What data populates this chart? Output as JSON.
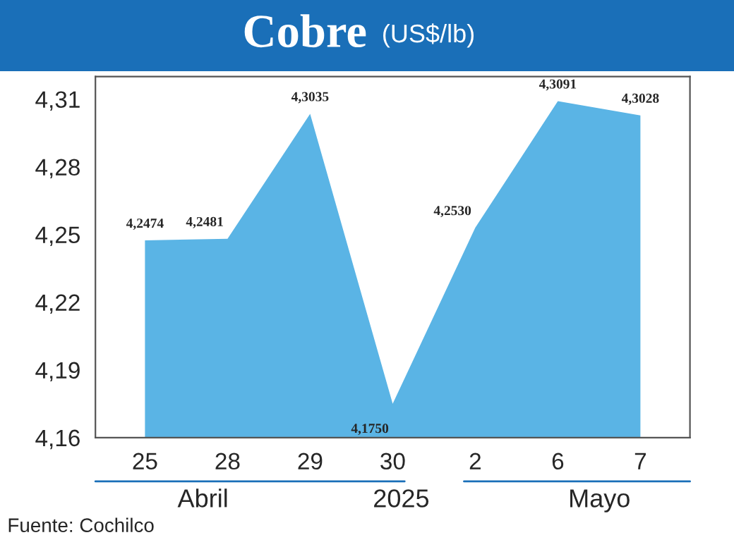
{
  "chart_data": {
    "type": "area",
    "title": "Cobre",
    "subtitle": "(US$/lb)",
    "categories": [
      "25",
      "28",
      "29",
      "30",
      "2",
      "6",
      "7"
    ],
    "values": [
      4.2474,
      4.2481,
      4.3035,
      4.175,
      4.253,
      4.3091,
      4.3028
    ],
    "value_labels": [
      "4,2474",
      "4,2481",
      "4,3035",
      "4,1750",
      "4,2530",
      "4,3091",
      "4,3028"
    ],
    "color": "#5ab4e5",
    "ylim": [
      4.16,
      4.32
    ],
    "yticks": [
      {
        "value": 4.16,
        "label": "4,16"
      },
      {
        "value": 4.19,
        "label": "4,19"
      },
      {
        "value": 4.22,
        "label": "4,22"
      },
      {
        "value": 4.25,
        "label": "4,25"
      },
      {
        "value": 4.28,
        "label": "4,28"
      },
      {
        "value": 4.31,
        "label": "4,31"
      }
    ],
    "grid": false,
    "annotations": [
      "Abril",
      "2025",
      "Mayo",
      "Fuente: Cochilco"
    ]
  }
}
